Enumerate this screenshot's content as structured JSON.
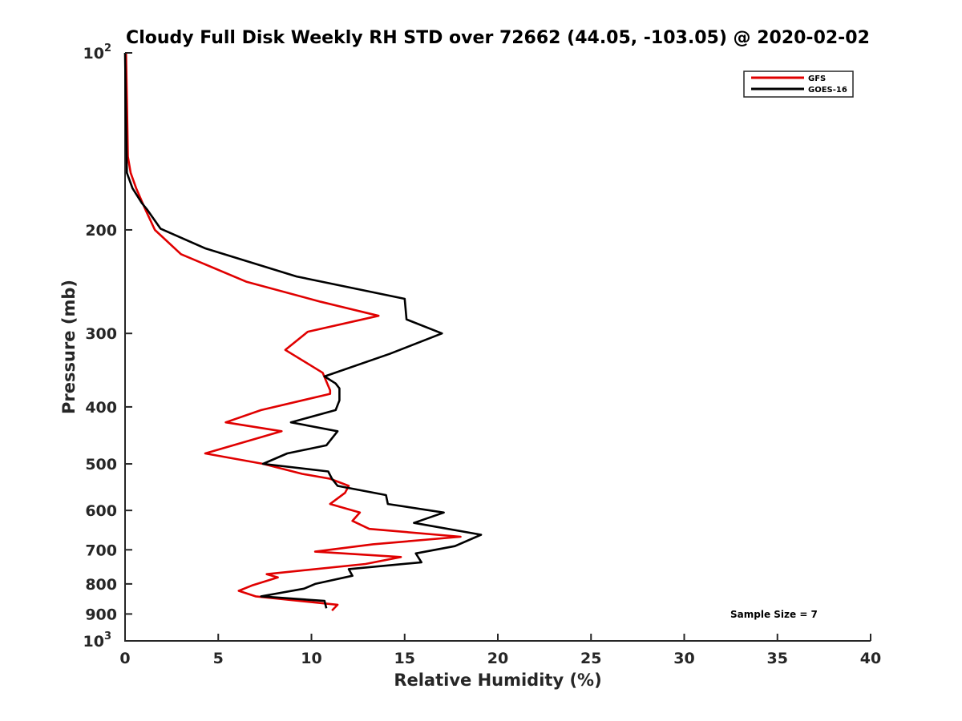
{
  "chart_data": {
    "type": "line",
    "title": "Cloudy Full Disk Weekly RH STD over 72662 (44.05, -103.05) @ 2020-02-02",
    "xlabel": "Relative Humidity (%)",
    "ylabel": "Pressure (mb)",
    "xlim": [
      0,
      40
    ],
    "ylim": [
      100,
      1000
    ],
    "yscale": "log",
    "y_reversed": true,
    "x_ticks": [
      "0",
      "5",
      "10",
      "15",
      "20",
      "25",
      "30",
      "35",
      "40"
    ],
    "y_ticks": [
      {
        "value": 100,
        "base": "10",
        "exp": "2"
      },
      {
        "value": 200,
        "base": "200",
        "exp": ""
      },
      {
        "value": 300,
        "base": "300",
        "exp": ""
      },
      {
        "value": 400,
        "base": "400",
        "exp": ""
      },
      {
        "value": 500,
        "base": "500",
        "exp": ""
      },
      {
        "value": 600,
        "base": "600",
        "exp": ""
      },
      {
        "value": 700,
        "base": "700",
        "exp": ""
      },
      {
        "value": 800,
        "base": "800",
        "exp": ""
      },
      {
        "value": 900,
        "base": "900",
        "exp": ""
      },
      {
        "value": 1000,
        "base": "10",
        "exp": "3"
      }
    ],
    "legend_position": "top-right",
    "grid": false,
    "annotation": "Sample Size = 7",
    "series": [
      {
        "name": "GFS",
        "color": "#e00000",
        "points": [
          [
            0.05,
            100
          ],
          [
            0.1,
            120
          ],
          [
            0.15,
            150
          ],
          [
            0.3,
            160
          ],
          [
            0.6,
            170
          ],
          [
            1.1,
            185
          ],
          [
            1.6,
            200
          ],
          [
            3.0,
            220
          ],
          [
            6.5,
            245
          ],
          [
            10.5,
            265
          ],
          [
            13.6,
            280
          ],
          [
            9.8,
            298
          ],
          [
            8.6,
            320
          ],
          [
            10.6,
            350
          ],
          [
            11.0,
            375
          ],
          [
            11.0,
            380
          ],
          [
            7.3,
            405
          ],
          [
            5.4,
            425
          ],
          [
            8.4,
            440
          ],
          [
            4.3,
            480
          ],
          [
            7.4,
            500
          ],
          [
            9.5,
            520
          ],
          [
            11.0,
            530
          ],
          [
            12.0,
            545
          ],
          [
            11.8,
            560
          ],
          [
            11.0,
            585
          ],
          [
            12.6,
            605
          ],
          [
            12.2,
            625
          ],
          [
            13.1,
            645
          ],
          [
            18.0,
            665
          ],
          [
            13.3,
            685
          ],
          [
            10.2,
            705
          ],
          [
            14.8,
            720
          ],
          [
            12.9,
            740
          ],
          [
            7.6,
            770
          ],
          [
            8.2,
            780
          ],
          [
            6.8,
            805
          ],
          [
            6.1,
            822
          ],
          [
            7.0,
            840
          ],
          [
            11.4,
            868
          ],
          [
            11.1,
            888
          ]
        ]
      },
      {
        "name": "GOES-16",
        "color": "#000000",
        "points": [
          [
            0.0,
            100
          ],
          [
            0.05,
            130
          ],
          [
            0.1,
            160
          ],
          [
            0.4,
            170
          ],
          [
            0.9,
            180
          ],
          [
            1.2,
            185
          ],
          [
            1.9,
            199
          ],
          [
            4.3,
            215
          ],
          [
            9.2,
            240
          ],
          [
            15.0,
            262
          ],
          [
            15.1,
            284
          ],
          [
            17.0,
            300
          ],
          [
            14.2,
            325
          ],
          [
            10.7,
            355
          ],
          [
            11.3,
            365
          ],
          [
            11.5,
            372
          ],
          [
            11.5,
            390
          ],
          [
            11.3,
            405
          ],
          [
            8.9,
            425
          ],
          [
            11.4,
            440
          ],
          [
            10.8,
            465
          ],
          [
            8.7,
            480
          ],
          [
            7.4,
            500
          ],
          [
            10.9,
            515
          ],
          [
            11.1,
            530
          ],
          [
            11.4,
            545
          ],
          [
            14.0,
            565
          ],
          [
            14.1,
            585
          ],
          [
            17.1,
            605
          ],
          [
            15.5,
            630
          ],
          [
            19.1,
            660
          ],
          [
            17.7,
            690
          ],
          [
            15.6,
            710
          ],
          [
            15.9,
            735
          ],
          [
            12.0,
            755
          ],
          [
            12.2,
            775
          ],
          [
            10.2,
            800
          ],
          [
            9.6,
            815
          ],
          [
            7.3,
            840
          ],
          [
            10.7,
            855
          ],
          [
            10.8,
            880
          ]
        ]
      }
    ]
  }
}
